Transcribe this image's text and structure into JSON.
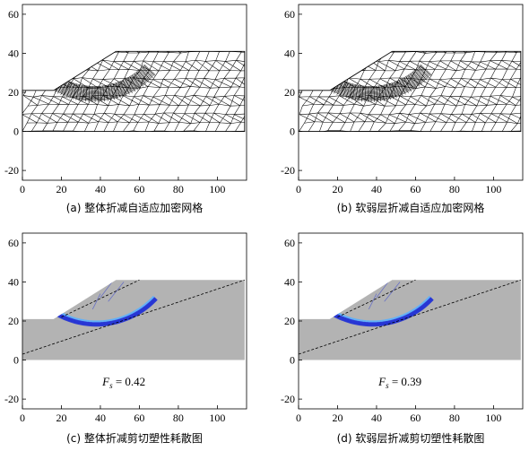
{
  "figure": {
    "panels": [
      {
        "id": "a",
        "kind": "mesh",
        "caption": "(a) 整体折减自适应加密网格"
      },
      {
        "id": "b",
        "kind": "mesh",
        "caption": "(b) 软弱层折减自适应加密网格"
      },
      {
        "id": "c",
        "kind": "dissipation",
        "caption": "(c) 整体折减剪切塑性耗散图",
        "fs_symbol": "F",
        "fs_sub": "s",
        "fs_text": " = 0.42",
        "weak_layer": false
      },
      {
        "id": "d",
        "kind": "dissipation",
        "caption": "(d) 软弱层折减剪切塑性耗散图",
        "fs_symbol": "F",
        "fs_sub": "s",
        "fs_text": " = 0.39",
        "weak_layer": true
      }
    ],
    "axes": {
      "xlim": [
        0,
        115
      ],
      "ylim": [
        -25,
        65
      ],
      "xticks": [
        0,
        20,
        40,
        60,
        80,
        100
      ],
      "yticks": [
        -20,
        0,
        20,
        40,
        60
      ]
    },
    "slope_geometry": {
      "toe_height": 21,
      "crest_height": 41,
      "toe_x": 16,
      "crest_x": 48,
      "x_max": 114,
      "base_y": 0
    },
    "colors": {
      "soil_fill": "#b3b3b3",
      "mesh_line": "#000000",
      "slip_band": "#1f2fd6",
      "slip_band_light": "#5ab0ff",
      "dashed_line": "#000000"
    }
  }
}
